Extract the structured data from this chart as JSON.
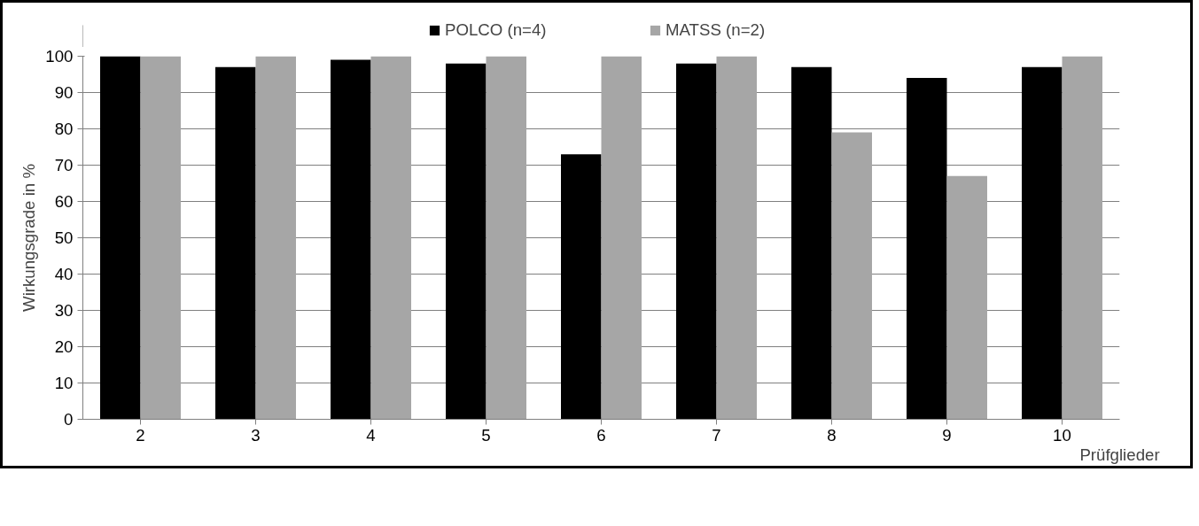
{
  "chart_data": {
    "type": "bar",
    "categories": [
      "2",
      "3",
      "4",
      "5",
      "6",
      "7",
      "8",
      "9",
      "10"
    ],
    "xlabel": "Prüfglieder",
    "ylabel": "Wirkungsgrade in %",
    "series": [
      {
        "name": "POLCO (n=4)",
        "color": "#000000",
        "values": [
          100,
          97,
          99,
          98,
          73,
          98,
          97,
          94,
          97
        ]
      },
      {
        "name": "MATSS (n=2)",
        "color": "#a6a6a6",
        "values": [
          100,
          100,
          100,
          100,
          100,
          100,
          79,
          67,
          100
        ]
      }
    ],
    "ylim": [
      0,
      100
    ],
    "yticks": [
      0,
      10,
      20,
      30,
      40,
      50,
      60,
      70,
      80,
      90,
      100
    ],
    "grid": "y",
    "legend": "top"
  }
}
